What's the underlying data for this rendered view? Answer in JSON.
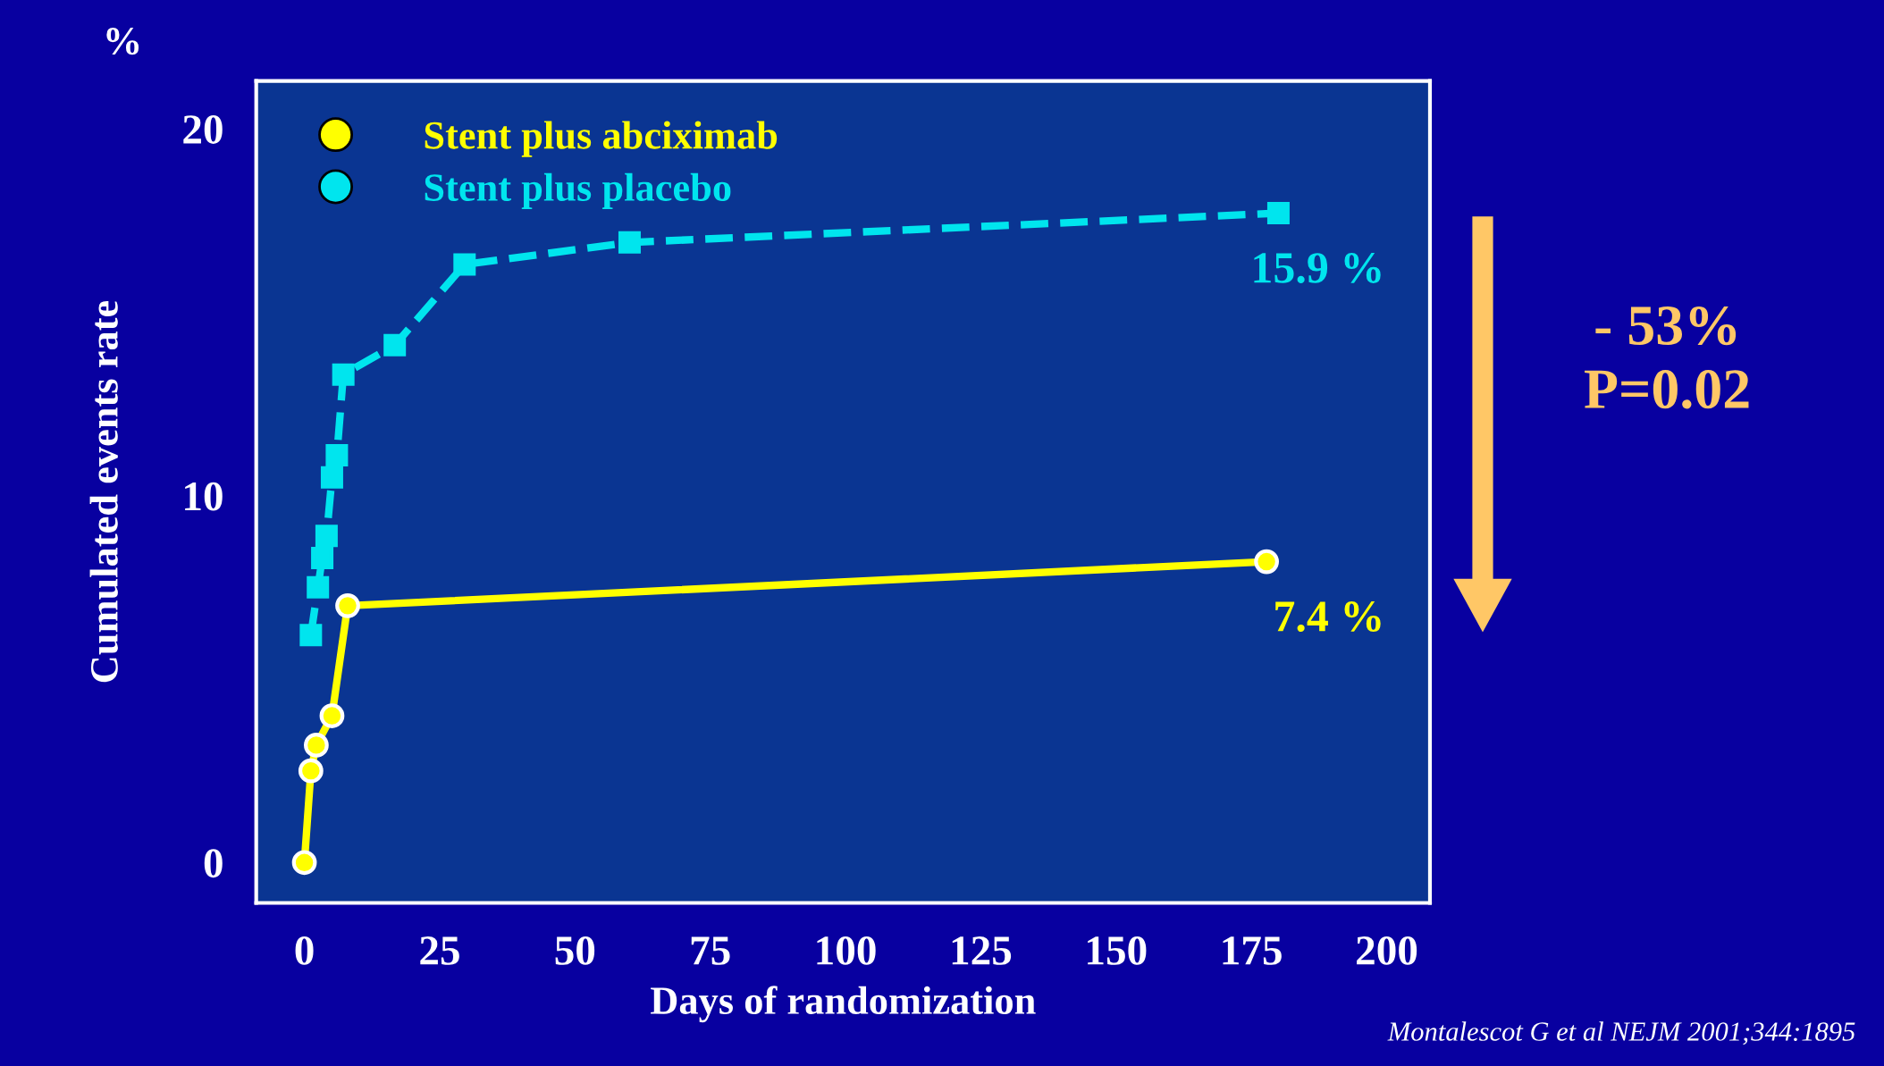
{
  "chart_data": {
    "type": "line",
    "xlabel": "Days of randomization",
    "ylabel": "Cumulated events rate",
    "xlim": [
      -8.9,
      208
    ],
    "xticks": [
      0,
      25,
      50,
      75,
      100,
      125,
      150,
      175,
      200
    ],
    "ylim": [
      -1.1,
      21.3
    ],
    "yticks": [
      0,
      10,
      20
    ],
    "grid": false,
    "legend": "top left",
    "series": [
      {
        "name": "Stent plus abciximab",
        "color": "#ffff00",
        "marker": "circle",
        "line_style": "solid",
        "x": [
          0,
          1.2,
          2.2,
          5.1,
          8.0,
          177.8
        ],
        "values": [
          0,
          2.5,
          3.2,
          4.0,
          7.0,
          8.2
        ]
      },
      {
        "name": "Stent plus placebo",
        "color": "#00e5ee",
        "marker": "square",
        "line_style": "dashed",
        "x": [
          1.2,
          2.5,
          3.3,
          4.1,
          5.1,
          6.0,
          7.2,
          16.7,
          29.6,
          60.1,
          180
        ],
        "values": [
          6.2,
          7.5,
          8.3,
          8.9,
          10.5,
          11.1,
          13.3,
          14.1,
          16.3,
          16.9,
          17.7
        ]
      }
    ],
    "annotations": [
      "%",
      "15.9 %",
      "7.4 %",
      "- 53%\nP=0.02",
      "Montalescot G et al NEJM 2001;344:1895"
    ]
  }
}
